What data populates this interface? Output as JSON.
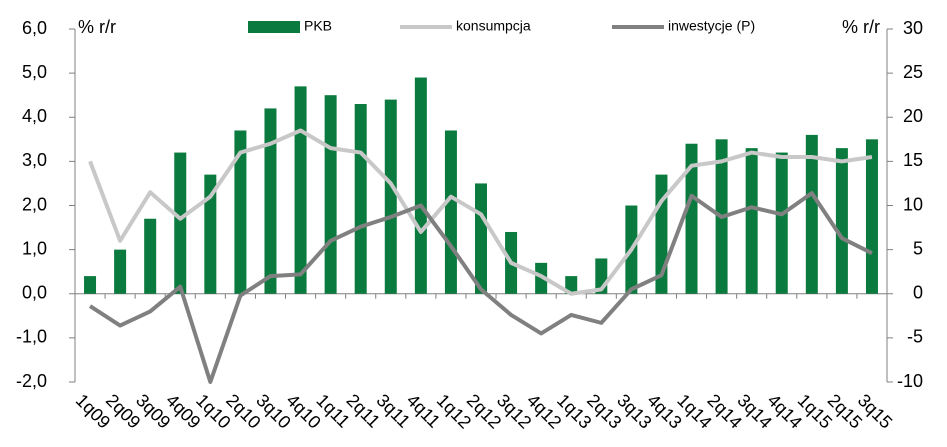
{
  "chart_data": {
    "type": "bar",
    "categories": [
      "1q09",
      "2q09",
      "3q09",
      "4q09",
      "1q10",
      "2q10",
      "3q10",
      "4q10",
      "1q11",
      "2q11",
      "3q11",
      "4q11",
      "1q12",
      "2q12",
      "3q12",
      "4q12",
      "1q13",
      "2q13",
      "3q13",
      "4q13",
      "1q14",
      "2q14",
      "3q14",
      "4q14",
      "1q15",
      "2q15",
      "3q15"
    ],
    "y_label": "% r/r",
    "y2_label": "% r/r",
    "series": [
      {
        "name": "PKB",
        "type": "bar",
        "color": "#0b7a3e",
        "values": [
          0.4,
          1.0,
          1.7,
          3.2,
          2.7,
          3.7,
          4.2,
          4.7,
          4.5,
          4.3,
          4.4,
          4.9,
          3.7,
          2.5,
          1.4,
          0.7,
          0.4,
          0.8,
          2.0,
          2.7,
          3.4,
          3.5,
          3.3,
          3.2,
          3.6,
          3.3,
          3.5
        ]
      },
      {
        "name": "konsumpcja",
        "type": "line",
        "color": "#c8c8c8",
        "values": [
          3.0,
          1.2,
          2.3,
          1.7,
          2.2,
          3.2,
          3.4,
          3.7,
          3.3,
          3.2,
          2.5,
          1.4,
          2.2,
          1.8,
          0.7,
          0.4,
          0.0,
          0.1,
          1.0,
          2.1,
          2.9,
          3.0,
          3.2,
          3.1,
          3.1,
          3.0,
          3.1
        ]
      },
      {
        "name": "inwestycje (P)",
        "type": "line",
        "axis": "y2",
        "color": "#808080",
        "values": [
          -1.4,
          -3.6,
          -2.0,
          0.8,
          -10.0,
          -0.2,
          2.0,
          2.2,
          6.0,
          7.6,
          8.7,
          10.0,
          5.4,
          0.5,
          -2.4,
          -4.5,
          -2.4,
          -3.3,
          0.5,
          2.1,
          11.1,
          8.7,
          9.8,
          9.0,
          11.4,
          6.3,
          4.6
        ]
      }
    ],
    "ylim": [
      -2,
      6
    ],
    "yticks": [
      {
        "value": -2,
        "label": "-2,0"
      },
      {
        "value": -1,
        "label": "-1,0"
      },
      {
        "value": 0,
        "label": "0,0"
      },
      {
        "value": 1,
        "label": "1,0"
      },
      {
        "value": 2,
        "label": "2,0"
      },
      {
        "value": 3,
        "label": "3,0"
      },
      {
        "value": 4,
        "label": "4,0"
      },
      {
        "value": 5,
        "label": "5,0"
      },
      {
        "value": 6,
        "label": "6,0"
      }
    ],
    "y2lim": [
      -10,
      30
    ],
    "y2ticks": [
      -10,
      -5,
      0,
      5,
      10,
      15,
      20,
      25,
      30
    ],
    "grid": false
  }
}
